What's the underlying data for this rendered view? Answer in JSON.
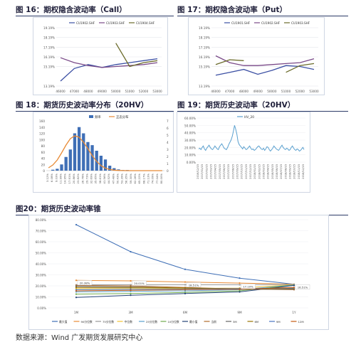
{
  "source": "数据来源：Wind 广发期货发展研究中心",
  "chart_data": [
    {
      "id": "fig16",
      "title": "图 16：期权隐含波动率（Call）",
      "type": "line",
      "x": [
        46000,
        47000,
        48000,
        49000,
        50000,
        51000,
        52000,
        53000
      ],
      "ylim": [
        13.19,
        19.19
      ],
      "yticks": [
        "13.19%",
        "15.19%",
        "16.19%",
        "17.19%",
        "18.19%",
        "19.19%"
      ],
      "ytick_values": [
        13.19,
        15.19,
        16.19,
        17.19,
        18.19,
        19.19
      ],
      "series": [
        {
          "name": "CU1902.SHF",
          "color": "#3b4fa3",
          "values": [
            13.7,
            15.0,
            15.4,
            15.1,
            15.4,
            15.6,
            15.8,
            16.0
          ]
        },
        {
          "name": "CU1903.SHF",
          "color": "#7a4a88",
          "values": [
            16.1,
            15.6,
            15.3,
            15.1,
            15.2,
            15.3,
            15.4,
            15.6
          ]
        },
        {
          "name": "CU1904.SHF",
          "color": "#6b6b2a",
          "values": [
            null,
            null,
            null,
            null,
            17.6,
            15.2,
            15.6,
            15.8
          ]
        }
      ]
    },
    {
      "id": "fig17",
      "title": "图 17：期权隐含波动率（Put）",
      "type": "line",
      "x": [
        46000,
        47000,
        48000,
        49000,
        50000,
        51000,
        52000,
        53000
      ],
      "ylim": [
        13.19,
        19.19
      ],
      "yticks": [
        "13.19%",
        "15.19%",
        "16.19%",
        "17.19%",
        "18.19%",
        "19.19%"
      ],
      "ytick_values": [
        13.19,
        15.19,
        16.19,
        17.19,
        18.19,
        19.19
      ],
      "series": [
        {
          "name": "CU1901.SHF",
          "color": "#3b4fa3",
          "values": [
            14.3,
            14.6,
            14.9,
            14.4,
            14.8,
            15.3,
            15.2,
            14.9
          ]
        },
        {
          "name": "CU1902.SHF",
          "color": "#7a4a88",
          "values": [
            16.3,
            15.6,
            15.3,
            15.3,
            15.4,
            15.5,
            15.6,
            16.0
          ]
        },
        {
          "name": "CU1903.SHF",
          "color": "#6b6b2a",
          "values": [
            15.4,
            15.9,
            15.8,
            null,
            null,
            14.6,
            15.3,
            15.5
          ]
        }
      ]
    },
    {
      "id": "fig18",
      "title": "图 18：期货历史波动率分布（20HV）",
      "type": "bar",
      "categories": [
        "3.12%",
        "6.08%",
        "9.03%",
        "11.99%",
        "14.95%",
        "17.91%",
        "20.86%",
        "23.82%",
        "26.78%",
        "29.73%",
        "32.69%",
        "35.65%",
        "38.61%",
        "41.56%",
        "44.52%",
        "47.48%",
        "50.43%",
        "53.39%",
        "56.35%",
        "59.30%",
        "62.26%",
        "65.22%",
        "68.17%",
        "71.13%",
        "74.09%",
        "77.04%",
        "80.00%"
      ],
      "values": [
        0,
        3,
        6,
        20,
        44,
        68,
        120,
        140,
        120,
        92,
        82,
        64,
        48,
        36,
        16,
        8,
        4,
        2,
        2,
        1,
        1,
        0,
        0,
        1,
        0,
        1,
        0
      ],
      "normal_values": [
        0.4,
        0.8,
        1.5,
        2.5,
        3.6,
        4.5,
        4.9,
        4.7,
        4.0,
        3.1,
        2.1,
        1.3,
        0.7,
        0.35,
        0.16,
        0.07,
        0.03,
        0.01,
        0,
        0,
        0,
        0,
        0,
        0,
        0,
        0,
        0
      ],
      "ylim": [
        0,
        160
      ],
      "yticks": [
        "0",
        "20",
        "40",
        "60",
        "80",
        "100",
        "120",
        "140",
        "160"
      ],
      "ytick_values": [
        0,
        20,
        40,
        60,
        80,
        100,
        120,
        140,
        160
      ],
      "y2lim": [
        0,
        7
      ],
      "y2ticks": [
        "0",
        "1",
        "2",
        "3",
        "4",
        "5",
        "6",
        "7"
      ],
      "y2tick_values": [
        0,
        1,
        2,
        3,
        4,
        5,
        6,
        7
      ],
      "legend": {
        "bar": "频率",
        "line": "正态分布"
      },
      "colors": {
        "bar": "#3f6fb6",
        "line": "#e88a35"
      }
    },
    {
      "id": "fig19",
      "title": "图 19：期货历史波动率（20HV）",
      "type": "line",
      "ylim": [
        0,
        60
      ],
      "yticks": [
        "0.00%",
        "10.00%",
        "20.00%",
        "30.00%",
        "40.00%",
        "50.00%",
        "60.00%"
      ],
      "ytick_values": [
        0,
        10,
        20,
        30,
        40,
        50,
        60
      ],
      "xticks": [
        "2016/12/15",
        "2017/01/15",
        "2017/02/15",
        "2017/03/15",
        "2017/04/15",
        "2017/05/15",
        "2017/06/15",
        "2017/07/15",
        "2017/08/15",
        "2017/09/15",
        "2017/10/15",
        "2017/11/15",
        "2017/12/15",
        "2018/01/15",
        "2018/02/15",
        "2018/03/15",
        "2018/04/15",
        "2018/05/15",
        "2018/06/15",
        "2018/07/15",
        "2018/08/15",
        "2018/09/15",
        "2018/10/15",
        "2018/11/15",
        "2018/12/15"
      ],
      "series": [
        {
          "name": "HV_20",
          "color": "#5aa0cf",
          "values": [
            18,
            19,
            17,
            20,
            22,
            18,
            16,
            19,
            21,
            23,
            20,
            18,
            17,
            19,
            22,
            20,
            18,
            17,
            21,
            23,
            25,
            22,
            19,
            18,
            17,
            20,
            24,
            27,
            30,
            35,
            42,
            50,
            45,
            38,
            28,
            24,
            22,
            20,
            18,
            21,
            19,
            17,
            18,
            20,
            22,
            19,
            17,
            18,
            16,
            17,
            19,
            21,
            22,
            20,
            18,
            17,
            19,
            16,
            18,
            21,
            20,
            17,
            15,
            17,
            19,
            22,
            20,
            18,
            17,
            16,
            18,
            21,
            23,
            20,
            18,
            17,
            19,
            18,
            16,
            17,
            20,
            22,
            19,
            17,
            16,
            18,
            17,
            15,
            16,
            18,
            20,
            17
          ]
        }
      ]
    },
    {
      "id": "fig20",
      "title": "图20：期货历史波动率锥",
      "type": "line",
      "x": [
        "1M",
        "3M",
        "6M",
        "9M",
        "1Y"
      ],
      "ylim": [
        0,
        80
      ],
      "yticks": [
        "0.00%",
        "10.00%",
        "20.00%",
        "30.00%",
        "40.00%",
        "50.00%",
        "60.00%",
        "70.00%",
        "80.00%"
      ],
      "ytick_values": [
        0,
        10,
        20,
        30,
        40,
        50,
        60,
        70,
        80
      ],
      "data_labels": [
        "20.38%",
        "20.01%",
        "18.51%",
        "17.10%",
        "16.51%"
      ],
      "series": [
        {
          "name": "最大值",
          "color": "#3f6fb6",
          "values": [
            75.5,
            51,
            35,
            27,
            21.5
          ]
        },
        {
          "name": "90分位数",
          "color": "#e88a35",
          "values": [
            25,
            24.5,
            23.5,
            22.5,
            21.5
          ]
        },
        {
          "name": "75分位数",
          "color": "#9a9a9a",
          "values": [
            21,
            21,
            21,
            21,
            21.3
          ]
        },
        {
          "name": "中位数",
          "color": "#f2c230",
          "values": [
            17.5,
            17.5,
            17.7,
            18,
            21
          ]
        },
        {
          "name": "25分位数",
          "color": "#5aa0cf",
          "values": [
            14.5,
            15,
            15.5,
            16.5,
            20.8
          ]
        },
        {
          "name": "10分位数",
          "color": "#6fab4e",
          "values": [
            12.5,
            13,
            14,
            15.5,
            20.6
          ]
        },
        {
          "name": "最小值",
          "color": "#264478",
          "values": [
            9.5,
            11.5,
            13,
            14.5,
            20.4
          ]
        },
        {
          "name": "当前",
          "color": "#b06a2a",
          "values": [
            20.38,
            20.01,
            18.51,
            17.1,
            16.51
          ]
        },
        {
          "name": "3M",
          "color": "#636363",
          "values": [
            19.5,
            19,
            18,
            17,
            17
          ]
        },
        {
          "name": "6M",
          "color": "#997300",
          "values": [
            18.5,
            18.5,
            18,
            17.5,
            17.5
          ]
        },
        {
          "name": "9M",
          "color": "#4a76c0",
          "values": [
            16.5,
            17,
            17,
            17.5,
            18
          ]
        },
        {
          "name": "12M",
          "color": "#c55a11",
          "values": [
            15.5,
            16,
            16.5,
            17,
            18.5
          ]
        }
      ]
    }
  ]
}
